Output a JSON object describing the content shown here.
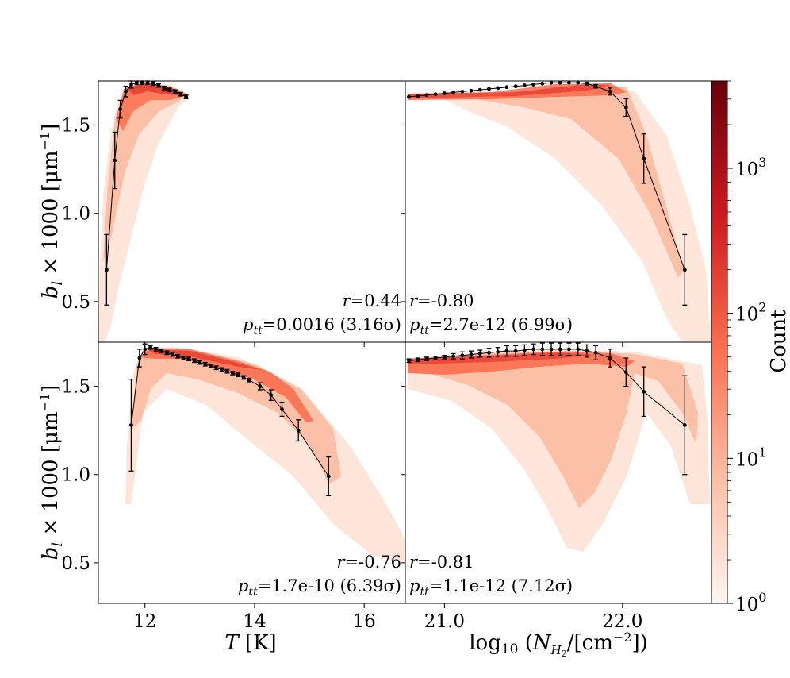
{
  "chart_data": {
    "type": "heatmap",
    "figure": "2x2 panel of 2D histograms with binned means and error bars",
    "colorbar": {
      "label": "Count",
      "scale": "log",
      "range": [
        1,
        4000
      ],
      "ticks": [
        {
          "value": 1,
          "base": "10",
          "exp": "0"
        },
        {
          "value": 10,
          "base": "10",
          "exp": "1"
        },
        {
          "value": 100,
          "base": "10",
          "exp": "2"
        },
        {
          "value": 1000,
          "base": "10",
          "exp": "3"
        }
      ],
      "colors": [
        "#fff5f0",
        "#fcbba1",
        "#fb6a4a",
        "#cb181d",
        "#67000d"
      ]
    },
    "ylabel": "b_l × 1000 [μm⁻¹]",
    "ylim": [
      0.27,
      1.75
    ],
    "yticks": [
      "0.5",
      "1.0",
      "1.5"
    ],
    "panels": [
      {
        "id": "top-left",
        "xlim": [
          11.15,
          16.75
        ],
        "xticks": [
          "12",
          "14",
          "16"
        ],
        "xlabel": "",
        "r_label": "r=0.44",
        "p_label": "ptt=0.0016 (3.16σ)",
        "r": 0.44,
        "p_tt": "0.0016",
        "sigma": "3.16σ",
        "stats_position": "bottom-right",
        "mean_x": [
          11.3,
          11.45,
          11.55,
          11.65,
          11.75,
          11.85,
          11.95,
          12.05,
          12.15,
          12.25,
          12.35,
          12.45,
          12.55,
          12.65,
          12.75
        ],
        "mean_y": [
          0.68,
          1.3,
          1.59,
          1.69,
          1.73,
          1.74,
          1.74,
          1.74,
          1.735,
          1.725,
          1.71,
          1.7,
          1.69,
          1.675,
          1.66
        ],
        "err": [
          0.2,
          0.16,
          0.05,
          0.03,
          0.02,
          0.01,
          0.01,
          0.01,
          0.01,
          0.01,
          0.01,
          0.01,
          0.01,
          0.01,
          0.01
        ]
      },
      {
        "id": "top-right",
        "xlim": [
          20.78,
          22.5
        ],
        "xticks": [
          "21.0",
          "22.0"
        ],
        "xlabel": "",
        "r_label": "r=-0.80",
        "p_label": "ptt=2.7e-12 (6.99σ)",
        "r": -0.8,
        "p_tt": "2.7e-12",
        "sigma": "6.99σ",
        "stats_position": "bottom-left",
        "mean_x": [
          20.8,
          20.85,
          20.9,
          20.95,
          21.0,
          21.05,
          21.1,
          21.15,
          21.2,
          21.25,
          21.3,
          21.35,
          21.4,
          21.45,
          21.5,
          21.55,
          21.6,
          21.65,
          21.7,
          21.75,
          21.8,
          21.85,
          21.93,
          22.02,
          22.12,
          22.35
        ],
        "mean_y": [
          1.66,
          1.665,
          1.67,
          1.675,
          1.68,
          1.685,
          1.69,
          1.695,
          1.7,
          1.705,
          1.71,
          1.715,
          1.72,
          1.725,
          1.73,
          1.735,
          1.74,
          1.74,
          1.74,
          1.74,
          1.735,
          1.72,
          1.69,
          1.6,
          1.31,
          0.68
        ],
        "err": [
          0.005,
          0.005,
          0.005,
          0.005,
          0.005,
          0.005,
          0.005,
          0.005,
          0.005,
          0.005,
          0.005,
          0.005,
          0.005,
          0.005,
          0.005,
          0.005,
          0.005,
          0.005,
          0.005,
          0.005,
          0.008,
          0.01,
          0.02,
          0.05,
          0.14,
          0.2
        ]
      },
      {
        "id": "bottom-left",
        "xlim": [
          11.15,
          16.75
        ],
        "xticks": [
          "12",
          "14",
          "16"
        ],
        "xlabel": "T [K]",
        "r_label": "r=-0.76",
        "p_label": "ptt=1.7e-10 (6.39σ)",
        "r": -0.76,
        "p_tt": "1.7e-10",
        "sigma": "6.39σ",
        "stats_position": "bottom-right",
        "mean_x": [
          11.75,
          11.9,
          12.0,
          12.1,
          12.2,
          12.3,
          12.4,
          12.5,
          12.6,
          12.7,
          12.8,
          12.9,
          13.0,
          13.1,
          13.2,
          13.3,
          13.4,
          13.5,
          13.6,
          13.7,
          13.8,
          13.9,
          14.1,
          14.3,
          14.5,
          14.8,
          15.35
        ],
        "mean_y": [
          1.28,
          1.66,
          1.71,
          1.72,
          1.71,
          1.7,
          1.69,
          1.68,
          1.67,
          1.66,
          1.655,
          1.645,
          1.635,
          1.625,
          1.615,
          1.605,
          1.595,
          1.585,
          1.575,
          1.565,
          1.55,
          1.535,
          1.5,
          1.45,
          1.37,
          1.25,
          0.99
        ],
        "err": [
          0.26,
          0.05,
          0.03,
          0.01,
          0.01,
          0.01,
          0.01,
          0.01,
          0.01,
          0.01,
          0.01,
          0.01,
          0.01,
          0.01,
          0.01,
          0.01,
          0.01,
          0.01,
          0.01,
          0.01,
          0.01,
          0.01,
          0.02,
          0.03,
          0.04,
          0.06,
          0.11
        ]
      },
      {
        "id": "bottom-right",
        "xlim": [
          20.78,
          22.5
        ],
        "xticks": [
          "21.0",
          "22.0"
        ],
        "xlabel": "log10 (N_H2/[cm⁻²])",
        "r_label": "r=-0.81",
        "p_label": "ptt=1.1e-12 (7.12σ)",
        "r": -0.81,
        "p_tt": "1.1e-12",
        "sigma": "7.12σ",
        "stats_position": "bottom-left",
        "mean_x": [
          20.8,
          20.85,
          20.9,
          20.95,
          21.0,
          21.05,
          21.1,
          21.15,
          21.2,
          21.25,
          21.3,
          21.35,
          21.4,
          21.45,
          21.5,
          21.55,
          21.6,
          21.65,
          21.7,
          21.75,
          21.8,
          21.85,
          21.93,
          22.02,
          22.12,
          22.35
        ],
        "mean_y": [
          1.645,
          1.65,
          1.655,
          1.66,
          1.665,
          1.67,
          1.675,
          1.68,
          1.685,
          1.69,
          1.695,
          1.7,
          1.7,
          1.705,
          1.71,
          1.71,
          1.71,
          1.71,
          1.71,
          1.71,
          1.7,
          1.69,
          1.66,
          1.58,
          1.47,
          1.28
        ],
        "err": [
          0.01,
          0.01,
          0.01,
          0.01,
          0.01,
          0.015,
          0.02,
          0.02,
          0.02,
          0.025,
          0.025,
          0.03,
          0.03,
          0.03,
          0.03,
          0.035,
          0.035,
          0.035,
          0.035,
          0.035,
          0.035,
          0.04,
          0.05,
          0.08,
          0.14,
          0.28
        ]
      }
    ]
  }
}
